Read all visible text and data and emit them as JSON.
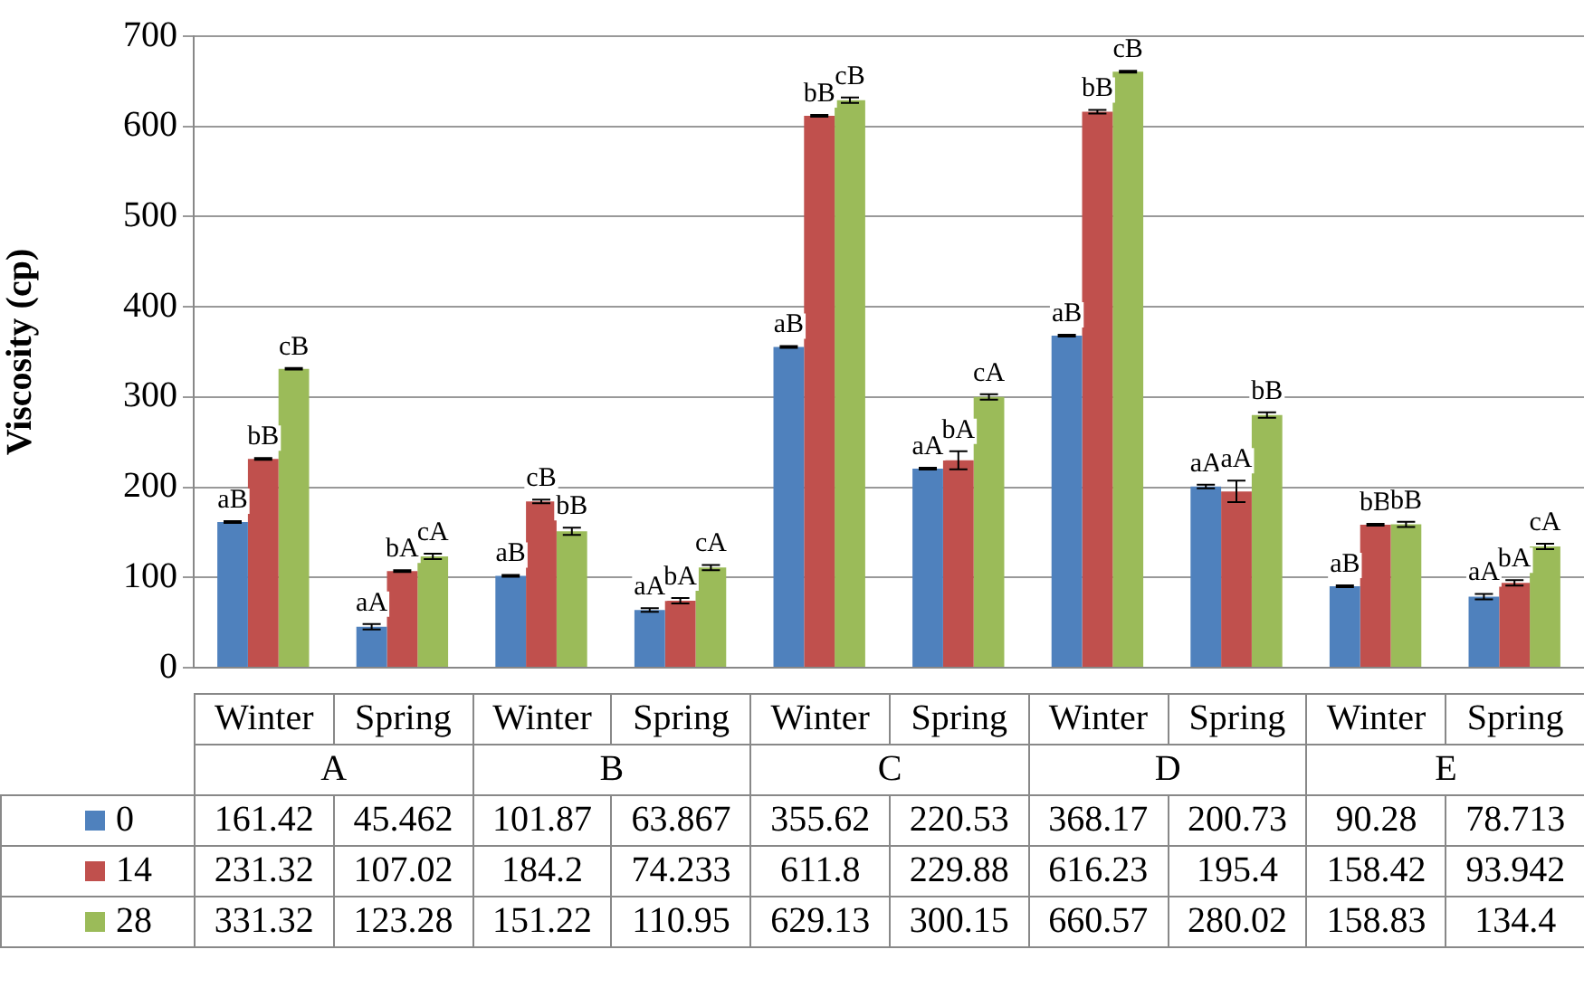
{
  "chart_data": {
    "type": "bar",
    "ylabel": "Viscosity (cp)",
    "categories": [
      "Winter",
      "Spring",
      "Winter",
      "Spring",
      "Winter",
      "Spring",
      "Winter",
      "Spring",
      "Winter",
      "Spring"
    ],
    "annotations": [
      "A",
      "B",
      "C",
      "D",
      "E",
      "aB",
      "aA",
      "aB",
      "aA",
      "aB",
      "aA",
      "aB",
      "aA",
      "aB",
      "aA",
      "bB",
      "bA",
      "cB",
      "bA",
      "bB",
      "bA",
      "bB",
      "aA",
      "bB",
      "bA",
      "cB",
      "cA",
      "bB",
      "cA",
      "cB",
      "cA",
      "cB",
      "bB",
      "bB",
      "cA"
    ],
    "series": [
      {
        "name": "0",
        "color": "#4f81bd",
        "values": [
          161.42,
          45.462,
          101.87,
          63.867,
          355.62,
          220.53,
          368.17,
          200.73,
          90.28,
          78.713
        ],
        "errors": [
          1,
          3,
          1,
          2,
          1,
          1,
          1,
          2,
          1,
          3
        ]
      },
      {
        "name": "14",
        "color": "#c0504d",
        "values": [
          231.32,
          107.02,
          184.2,
          74.233,
          611.8,
          229.88,
          616.23,
          195.4,
          158.42,
          93.942
        ],
        "errors": [
          1,
          1,
          2,
          3,
          1,
          10,
          2,
          12,
          1,
          3
        ]
      },
      {
        "name": "28",
        "color": "#9bbb59",
        "values": [
          331.32,
          123.28,
          151.22,
          110.95,
          629.13,
          300.15,
          660.57,
          280.02,
          158.83,
          134.4
        ],
        "errors": [
          1,
          3,
          4,
          3,
          3,
          3,
          1,
          3,
          3,
          3
        ]
      }
    ],
    "ylim": [
      0,
      700
    ],
    "yticks": [
      0,
      100,
      200,
      300,
      400,
      500,
      600,
      700
    ],
    "grid": "y",
    "legend": "bottom",
    "data_labels": true
  }
}
